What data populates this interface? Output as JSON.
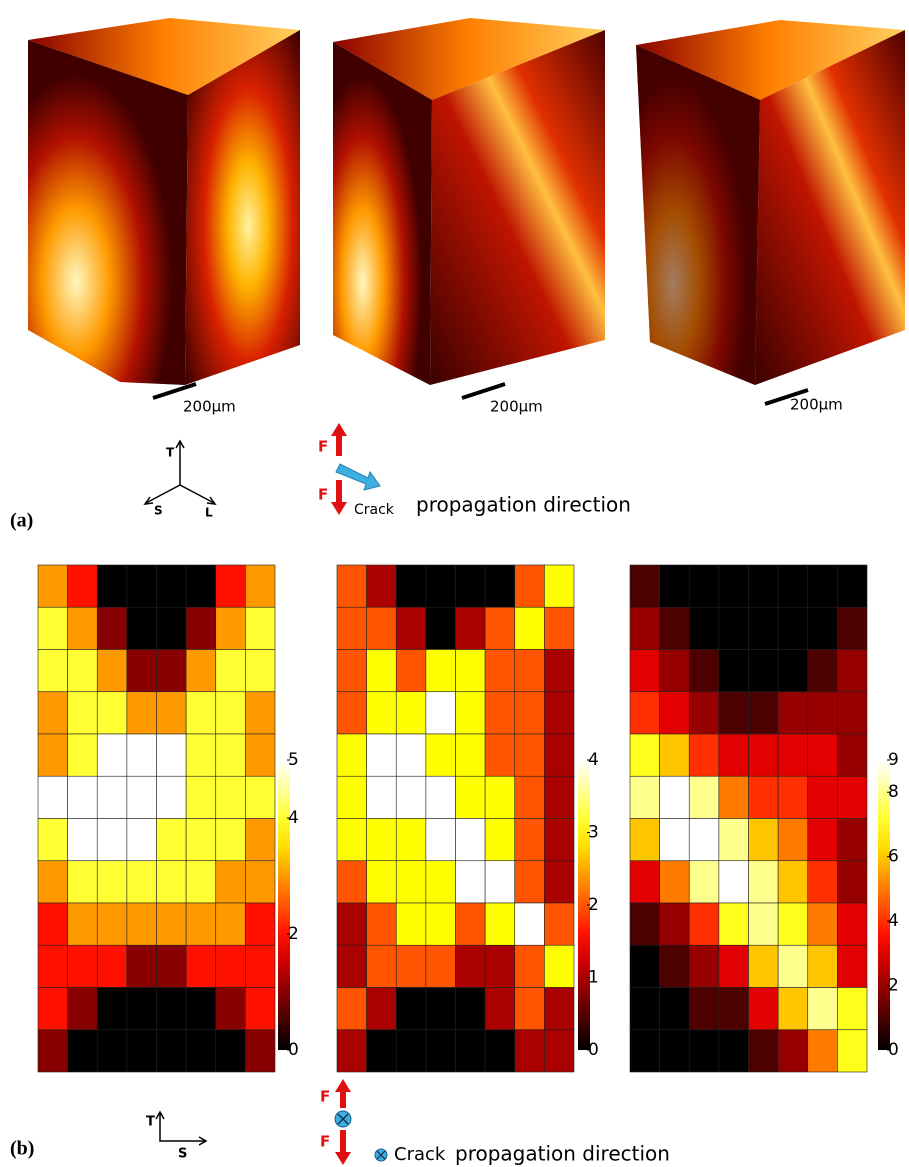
{
  "panel_a": {
    "tag": "(a)",
    "scale_labels": [
      "200µm",
      "200µm",
      "200µm"
    ],
    "axes": [
      "T",
      "S",
      "L"
    ],
    "force_labels": [
      "F",
      "F"
    ],
    "crack_label": "Crack",
    "direction_label": "propagation direction"
  },
  "panel_b": {
    "tag": "(b)",
    "axes": [
      "T",
      "S"
    ],
    "force_labels": [
      "F",
      "F"
    ],
    "crack_label": "Crack",
    "direction_label": "propagation direction",
    "colormap": "hot",
    "heatmaps": [
      {
        "zlim": [
          0,
          5
        ],
        "ticks": [
          0,
          2,
          4,
          5
        ],
        "values": [
          [
            3,
            2,
            0,
            0,
            0,
            0,
            2,
            3
          ],
          [
            4,
            3,
            1,
            0,
            0,
            1,
            3,
            4
          ],
          [
            4,
            4,
            3,
            1,
            1,
            3,
            4,
            4
          ],
          [
            3,
            4,
            4,
            3,
            3,
            4,
            4,
            3
          ],
          [
            3,
            4,
            5,
            5,
            5,
            4,
            4,
            3
          ],
          [
            5,
            5,
            5,
            5,
            5,
            4,
            4,
            4
          ],
          [
            4,
            5,
            5,
            5,
            4,
            4,
            4,
            3
          ],
          [
            3,
            4,
            4,
            4,
            4,
            4,
            3,
            3
          ],
          [
            2,
            3,
            3,
            3,
            3,
            3,
            3,
            2
          ],
          [
            2,
            2,
            2,
            1,
            1,
            2,
            2,
            2
          ],
          [
            2,
            1,
            0,
            0,
            0,
            0,
            1,
            2
          ],
          [
            1,
            0,
            0,
            0,
            0,
            0,
            0,
            1
          ]
        ]
      },
      {
        "zlim": [
          0,
          4
        ],
        "ticks": [
          0,
          1,
          2,
          3,
          4
        ],
        "values": [
          [
            2,
            1,
            0,
            0,
            0,
            0,
            2,
            3
          ],
          [
            2,
            2,
            1,
            0,
            1,
            2,
            3,
            2
          ],
          [
            2,
            3,
            2,
            3,
            3,
            2,
            2,
            1
          ],
          [
            2,
            3,
            3,
            4,
            3,
            2,
            2,
            1
          ],
          [
            3,
            4,
            4,
            3,
            3,
            2,
            2,
            1
          ],
          [
            3,
            4,
            4,
            4,
            3,
            3,
            2,
            1
          ],
          [
            3,
            3,
            3,
            4,
            4,
            3,
            2,
            1
          ],
          [
            2,
            3,
            3,
            3,
            4,
            4,
            2,
            1
          ],
          [
            1,
            2,
            3,
            3,
            2,
            3,
            4,
            2
          ],
          [
            1,
            2,
            2,
            2,
            1,
            1,
            2,
            3
          ],
          [
            2,
            1,
            0,
            0,
            0,
            1,
            2,
            1
          ],
          [
            1,
            0,
            0,
            0,
            0,
            0,
            1,
            1
          ]
        ]
      },
      {
        "zlim": [
          0,
          9
        ],
        "ticks": [
          0,
          2,
          4,
          6,
          8,
          9
        ],
        "values": [
          [
            1,
            0,
            0,
            0,
            0,
            0,
            0,
            0
          ],
          [
            2,
            1,
            0,
            0,
            0,
            0,
            0,
            1
          ],
          [
            3,
            2,
            1,
            0,
            0,
            0,
            1,
            2
          ],
          [
            4,
            3,
            2,
            1,
            1,
            2,
            2,
            2
          ],
          [
            7,
            6,
            4,
            3,
            3,
            3,
            3,
            2
          ],
          [
            8,
            9,
            8,
            5,
            4,
            4,
            3,
            3
          ],
          [
            6,
            9,
            9,
            8,
            6,
            5,
            3,
            2
          ],
          [
            3,
            5,
            8,
            9,
            8,
            6,
            4,
            2
          ],
          [
            1,
            2,
            4,
            7,
            8,
            7,
            5,
            3
          ],
          [
            0,
            1,
            2,
            3,
            6,
            8,
            6,
            3
          ],
          [
            0,
            0,
            1,
            1,
            3,
            6,
            8,
            7
          ],
          [
            0,
            0,
            0,
            0,
            1,
            2,
            5,
            7
          ]
        ]
      }
    ]
  }
}
